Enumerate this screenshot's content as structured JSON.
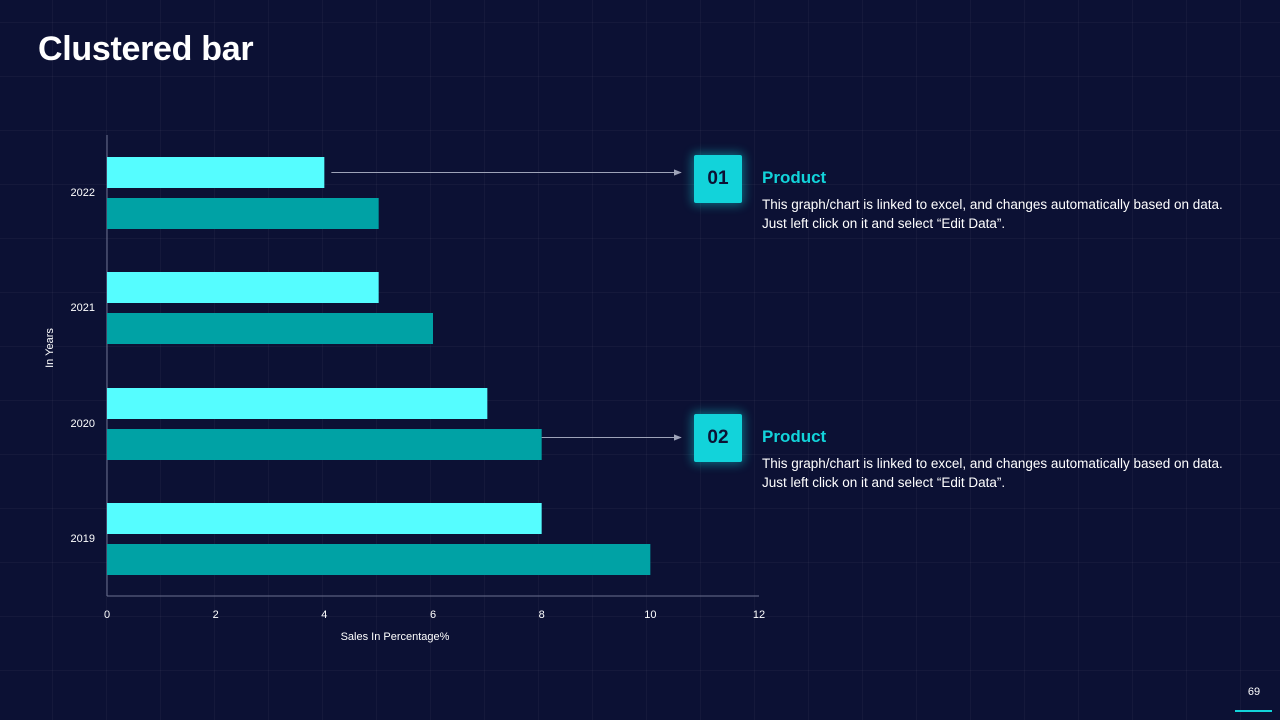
{
  "slide": {
    "title": "Clustered bar",
    "page_number": "69"
  },
  "colors": {
    "background": "#0c1134",
    "series_light": "#55fdff",
    "series_dark": "#00a2a5",
    "accent": "#12d3da"
  },
  "callouts": [
    {
      "number": "01",
      "title": "Product",
      "text": "This graph/chart is linked to excel, and changes automatically based on data. Just left click on it and select “Edit Data”."
    },
    {
      "number": "02",
      "title": "Product",
      "text": "This graph/chart is linked to excel, and changes automatically based on data. Just left click on it and select “Edit Data”."
    }
  ],
  "chart_data": {
    "type": "bar",
    "orientation": "horizontal",
    "title": "",
    "xlabel": "Sales In Percentage%",
    "ylabel": "In Years",
    "categories": [
      "2022",
      "2021",
      "2020",
      "2019"
    ],
    "series": [
      {
        "name": "Product 01",
        "color": "#55fdff",
        "values": [
          4,
          5,
          7,
          8
        ]
      },
      {
        "name": "Product 02",
        "color": "#00a2a5",
        "values": [
          5,
          6,
          8,
          10
        ]
      }
    ],
    "xlim": [
      0,
      12
    ],
    "xticks": [
      0,
      2,
      4,
      6,
      8,
      10,
      12
    ],
    "grid": false,
    "legend": "none"
  }
}
